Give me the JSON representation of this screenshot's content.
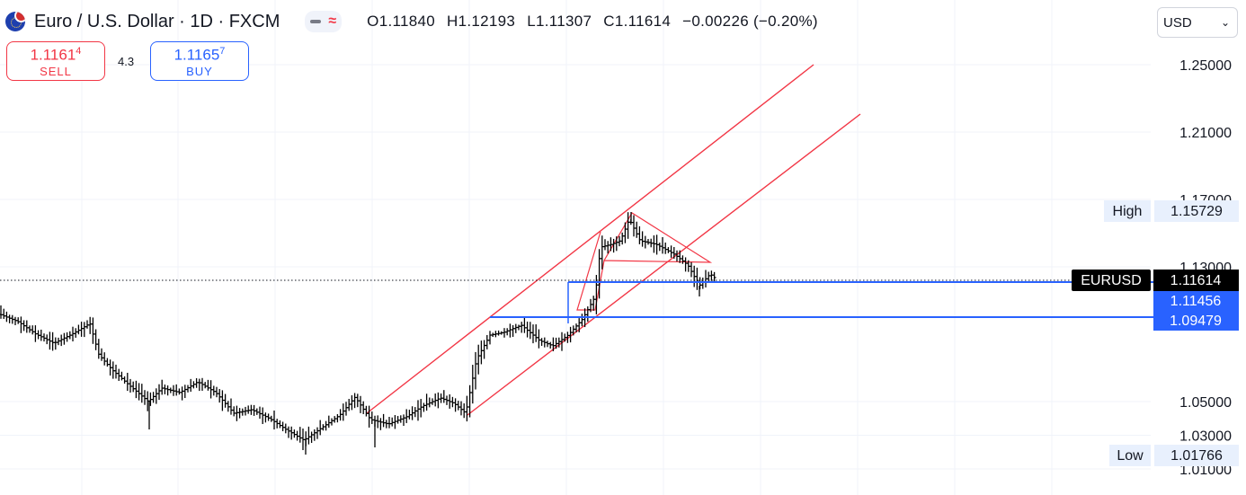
{
  "header": {
    "title": "Euro / U.S. Dollar · 1D · FXCM",
    "open": "O1.11840",
    "high": "H1.12193",
    "low": "L1.11307",
    "close": "C1.11614",
    "change": "−0.00226 (−0.20%)"
  },
  "trade": {
    "sell_price_main": "1.1161",
    "sell_price_sup": "4",
    "sell_label": "SELL",
    "spread": "4.3",
    "buy_price_main": "1.1165",
    "buy_price_sup": "7",
    "buy_label": "BUY"
  },
  "currency_select": {
    "value": "USD"
  },
  "colors": {
    "accent_red": "#f23645",
    "accent_blue": "#2962ff",
    "bar": "#000000"
  },
  "chart_data": {
    "type": "bar",
    "symbol": "EURUSD",
    "y_axis_ticks": [
      "1.25000",
      "1.21000",
      "1.17000",
      "1.13000",
      "1.05000",
      "1.03000",
      "1.01000"
    ],
    "ylim": [
      1.0095,
      1.2622
    ],
    "price_labels": [
      {
        "text": "High",
        "value": "1.15729",
        "style": "plain"
      },
      {
        "text": "EURUSD",
        "value": "1.11614",
        "style": "black"
      },
      {
        "text": "",
        "value": "1.11456",
        "style": "blue"
      },
      {
        "text": "",
        "value": "1.09479",
        "style": "blue"
      },
      {
        "text": "Low",
        "value": "1.01766",
        "style": "plain"
      }
    ],
    "current_price": 1.11614,
    "horizontal_levels": [
      1.11456,
      1.09479
    ],
    "grid": true
  }
}
